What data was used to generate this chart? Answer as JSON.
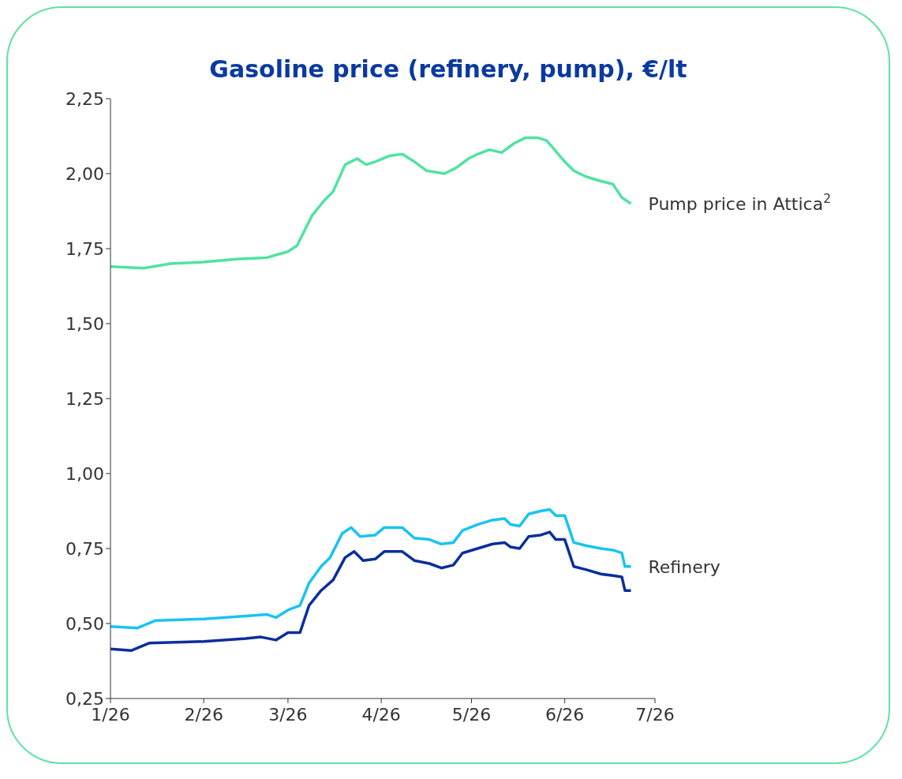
{
  "chart_data": {
    "type": "line",
    "title": "Gasoline price (refinery, pump), €/lt",
    "xlim": [
      "2026-01-01",
      "2026-07-01"
    ],
    "xticks": [
      {
        "value": "2026-01-01",
        "label": "1/26"
      },
      {
        "value": "2026-02-01",
        "label": "2/26"
      },
      {
        "value": "2026-03-01",
        "label": "3/26"
      },
      {
        "value": "2026-04-01",
        "label": "4/26"
      },
      {
        "value": "2026-05-01",
        "label": "5/26"
      },
      {
        "value": "2026-06-01",
        "label": "6/26"
      },
      {
        "value": "2026-07-01",
        "label": "7/26"
      }
    ],
    "ylim": [
      0.25,
      2.25
    ],
    "yticks": [
      {
        "value": 0.25,
        "label": "0,25"
      },
      {
        "value": 0.5,
        "label": "0,50"
      },
      {
        "value": 0.75,
        "label": "0,75"
      },
      {
        "value": 1,
        "label": "1,00"
      },
      {
        "value": 1.25,
        "label": "1,25"
      },
      {
        "value": 1.5,
        "label": "1,50"
      },
      {
        "value": 1.75,
        "label": "1,75"
      },
      {
        "value": 2,
        "label": "2,00"
      },
      {
        "value": 2.25,
        "label": "2,25"
      }
    ],
    "grid": false,
    "legend": false,
    "marker": "none",
    "line_style": "solid",
    "series": [
      {
        "name": "Pump price in Attica$^{2}$",
        "color": "#50e3a0",
        "x": [
          "2026-01-01",
          "2026-01-12",
          "2026-01-21",
          "2026-02-01",
          "2026-02-12",
          "2026-02-22",
          "2026-03-01",
          "2026-03-04",
          "2026-03-07",
          "2026-03-09",
          "2026-03-13",
          "2026-03-16",
          "2026-03-20",
          "2026-03-24",
          "2026-03-27",
          "2026-03-30",
          "2026-04-04",
          "2026-04-08",
          "2026-04-12",
          "2026-04-16",
          "2026-04-22",
          "2026-04-26",
          "2026-04-30",
          "2026-05-03",
          "2026-05-07",
          "2026-05-11",
          "2026-05-15",
          "2026-05-19",
          "2026-05-23",
          "2026-05-26",
          "2026-06-01",
          "2026-06-04",
          "2026-06-08",
          "2026-06-13",
          "2026-06-17",
          "2026-06-20",
          "2026-06-23"
        ],
        "values": [
          1.69,
          1.685,
          1.7,
          1.705,
          1.715,
          1.72,
          1.74,
          1.76,
          1.82,
          1.86,
          1.91,
          1.94,
          2.03,
          2.05,
          2.03,
          2.04,
          2.06,
          2.065,
          2.04,
          2.01,
          2.0,
          2.02,
          2.05,
          2.065,
          2.08,
          2.07,
          2.1,
          2.12,
          2.12,
          2.11,
          2.04,
          2.01,
          1.99,
          1.975,
          1.965,
          1.92,
          1.9
        ]
      },
      {
        "name": "Refinery",
        "color": "#19c3f0",
        "x": [
          "2026-01-01",
          "2026-01-10",
          "2026-01-16",
          "2026-02-01",
          "2026-02-15",
          "2026-02-22",
          "2026-02-25",
          "2026-03-01",
          "2026-03-05",
          "2026-03-08",
          "2026-03-12",
          "2026-03-15",
          "2026-03-19",
          "2026-03-22",
          "2026-03-25",
          "2026-03-30",
          "2026-04-02",
          "2026-04-08",
          "2026-04-12",
          "2026-04-17",
          "2026-04-21",
          "2026-04-25",
          "2026-04-28",
          "2026-05-03",
          "2026-05-08",
          "2026-05-12",
          "2026-05-14",
          "2026-05-17",
          "2026-05-20",
          "2026-05-24",
          "2026-05-27",
          "2026-05-29",
          "2026-06-01",
          "2026-06-04",
          "2026-06-08",
          "2026-06-13",
          "2026-06-17",
          "2026-06-20",
          "2026-06-21",
          "2026-06-23"
        ],
        "values": [
          0.49,
          0.485,
          0.51,
          0.515,
          0.525,
          0.53,
          0.52,
          0.545,
          0.56,
          0.635,
          0.69,
          0.72,
          0.8,
          0.82,
          0.79,
          0.795,
          0.82,
          0.82,
          0.785,
          0.78,
          0.765,
          0.77,
          0.81,
          0.83,
          0.845,
          0.85,
          0.83,
          0.825,
          0.865,
          0.875,
          0.88,
          0.86,
          0.86,
          0.77,
          0.76,
          0.75,
          0.745,
          0.735,
          0.69,
          0.69
        ]
      },
      {
        "color": "#0a2e9c",
        "x": [
          "2026-01-01",
          "2026-01-08",
          "2026-01-14",
          "2026-02-01",
          "2026-02-15",
          "2026-02-20",
          "2026-02-25",
          "2026-03-01",
          "2026-03-05",
          "2026-03-08",
          "2026-03-12",
          "2026-03-16",
          "2026-03-20",
          "2026-03-23",
          "2026-03-26",
          "2026-03-30",
          "2026-04-02",
          "2026-04-08",
          "2026-04-12",
          "2026-04-17",
          "2026-04-21",
          "2026-04-25",
          "2026-04-28",
          "2026-05-03",
          "2026-05-08",
          "2026-05-12",
          "2026-05-14",
          "2026-05-17",
          "2026-05-20",
          "2026-05-24",
          "2026-05-27",
          "2026-05-29",
          "2026-06-01",
          "2026-06-04",
          "2026-06-08",
          "2026-06-13",
          "2026-06-17",
          "2026-06-20",
          "2026-06-21",
          "2026-06-23"
        ],
        "values": [
          0.415,
          0.41,
          0.435,
          0.44,
          0.45,
          0.455,
          0.445,
          0.47,
          0.47,
          0.56,
          0.61,
          0.645,
          0.72,
          0.74,
          0.71,
          0.715,
          0.74,
          0.74,
          0.71,
          0.7,
          0.685,
          0.695,
          0.735,
          0.75,
          0.765,
          0.77,
          0.755,
          0.75,
          0.79,
          0.795,
          0.805,
          0.78,
          0.78,
          0.69,
          0.68,
          0.665,
          0.66,
          0.655,
          0.61,
          0.61
        ]
      }
    ]
  }
}
